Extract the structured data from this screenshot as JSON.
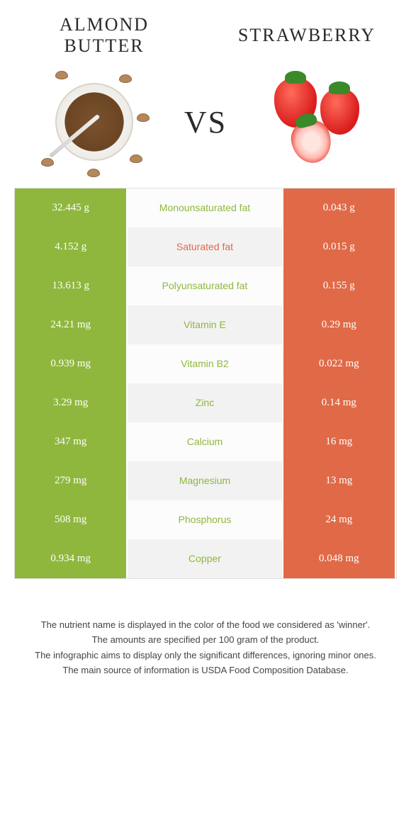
{
  "header": {
    "left_title": "Almond Butter",
    "right_title": "Strawberry",
    "vs_label": "vs"
  },
  "colors": {
    "green": "#8fb73e",
    "orange": "#e06a47",
    "row_alt_light": "#fcfcfc",
    "row_alt_gray": "#f2f2f2",
    "text_white": "#ffffff"
  },
  "table": {
    "rows": [
      {
        "left": "32.445 g",
        "label": "Monounsaturated fat",
        "right": "0.043 g",
        "winner": "left"
      },
      {
        "left": "4.152 g",
        "label": "Saturated fat",
        "right": "0.015 g",
        "winner": "right"
      },
      {
        "left": "13.613 g",
        "label": "Polyunsaturated fat",
        "right": "0.155 g",
        "winner": "left"
      },
      {
        "left": "24.21 mg",
        "label": "Vitamin E",
        "right": "0.29 mg",
        "winner": "left"
      },
      {
        "left": "0.939 mg",
        "label": "Vitamin B2",
        "right": "0.022 mg",
        "winner": "left"
      },
      {
        "left": "3.29 mg",
        "label": "Zinc",
        "right": "0.14 mg",
        "winner": "left"
      },
      {
        "left": "347 mg",
        "label": "Calcium",
        "right": "16 mg",
        "winner": "left"
      },
      {
        "left": "279 mg",
        "label": "Magnesium",
        "right": "13 mg",
        "winner": "left"
      },
      {
        "left": "508 mg",
        "label": "Phosphorus",
        "right": "24 mg",
        "winner": "left"
      },
      {
        "left": "0.934 mg",
        "label": "Copper",
        "right": "0.048 mg",
        "winner": "left"
      }
    ]
  },
  "footer": {
    "lines": [
      "The nutrient name is displayed in the color of the food we considered as 'winner'.",
      "The amounts are specified per 100 gram of the product.",
      "The infographic aims to display only the significant differences, ignoring minor ones.",
      "The main source of information is USDA Food Composition Database."
    ]
  }
}
